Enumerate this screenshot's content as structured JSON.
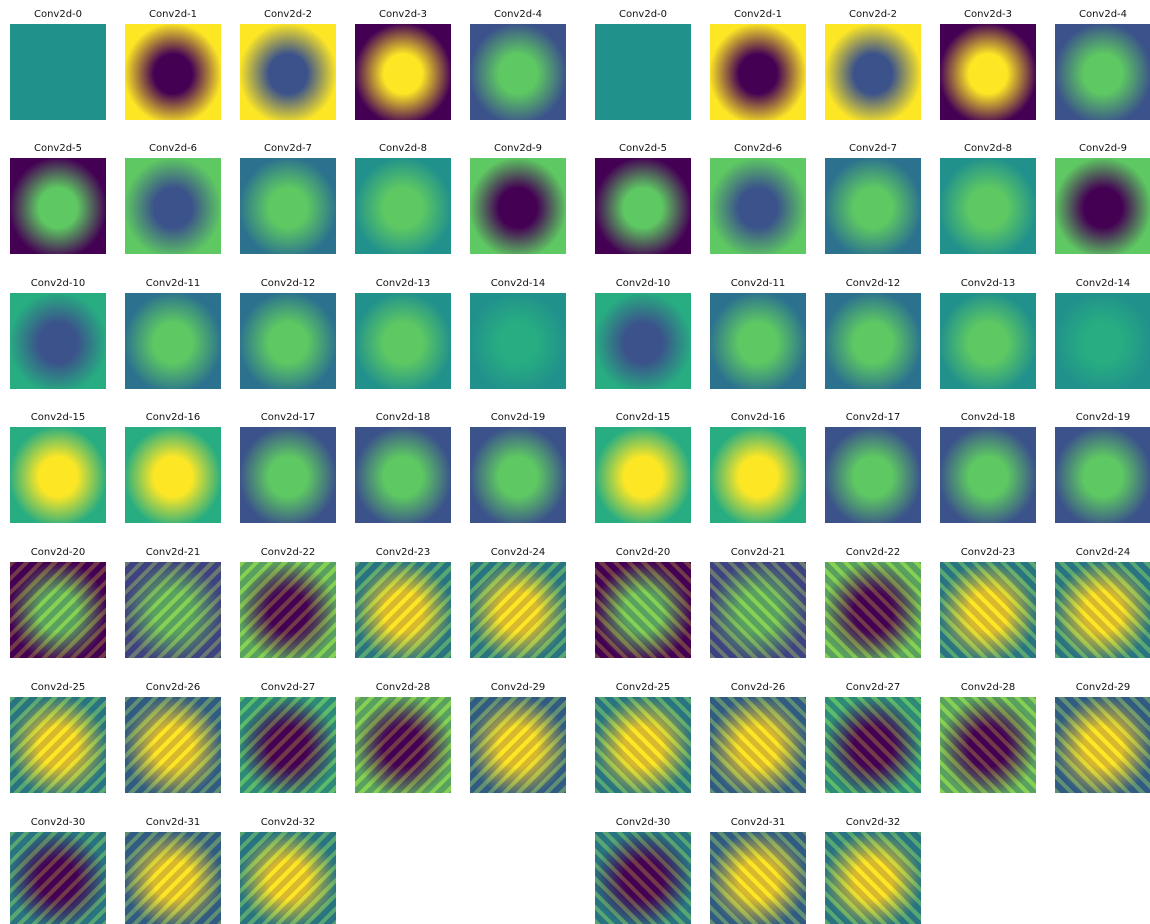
{
  "panels": [
    {
      "tiles": [
        "Conv2d-0",
        "Conv2d-1",
        "Conv2d-2",
        "Conv2d-3",
        "Conv2d-4",
        "Conv2d-5",
        "Conv2d-6",
        "Conv2d-7",
        "Conv2d-8",
        "Conv2d-9",
        "Conv2d-10",
        "Conv2d-11",
        "Conv2d-12",
        "Conv2d-13",
        "Conv2d-14",
        "Conv2d-15",
        "Conv2d-16",
        "Conv2d-17",
        "Conv2d-18",
        "Conv2d-19",
        "Conv2d-20",
        "Conv2d-21",
        "Conv2d-22",
        "Conv2d-23",
        "Conv2d-24",
        "Conv2d-25",
        "Conv2d-26",
        "Conv2d-27",
        "Conv2d-28",
        "Conv2d-29",
        "Conv2d-30",
        "Conv2d-31",
        "Conv2d-32"
      ]
    },
    {
      "tiles": [
        "Conv2d-0",
        "Conv2d-1",
        "Conv2d-2",
        "Conv2d-3",
        "Conv2d-4",
        "Conv2d-5",
        "Conv2d-6",
        "Conv2d-7",
        "Conv2d-8",
        "Conv2d-9",
        "Conv2d-10",
        "Conv2d-11",
        "Conv2d-12",
        "Conv2d-13",
        "Conv2d-14",
        "Conv2d-15",
        "Conv2d-16",
        "Conv2d-17",
        "Conv2d-18",
        "Conv2d-19",
        "Conv2d-20",
        "Conv2d-21",
        "Conv2d-22",
        "Conv2d-23",
        "Conv2d-24",
        "Conv2d-25",
        "Conv2d-26",
        "Conv2d-27",
        "Conv2d-28",
        "Conv2d-29",
        "Conv2d-30",
        "Conv2d-31",
        "Conv2d-32"
      ]
    }
  ]
}
